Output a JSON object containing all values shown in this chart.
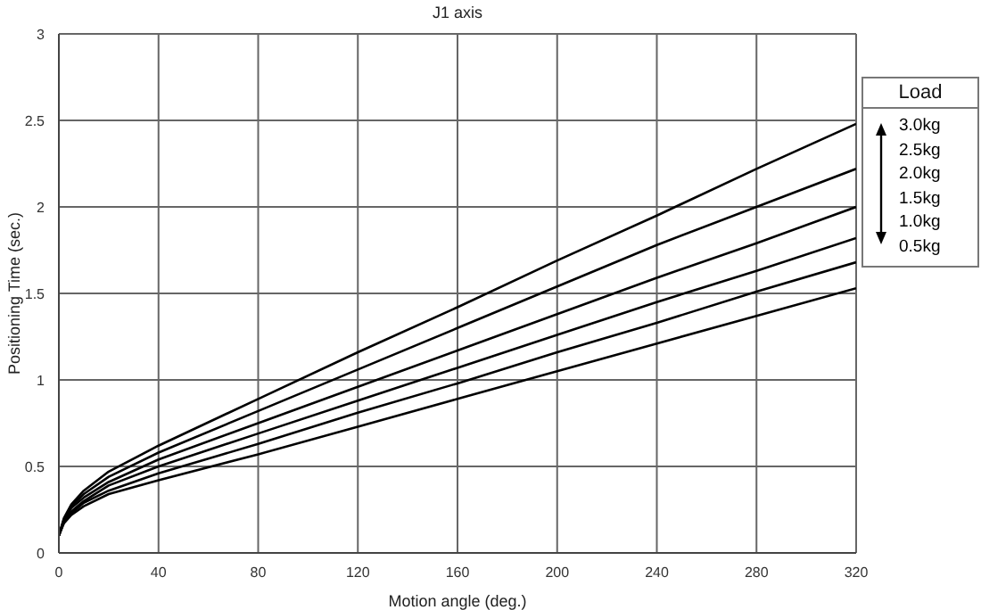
{
  "chart_data": {
    "type": "line",
    "title": "J1 axis",
    "xlabel": "Motion angle (deg.)",
    "ylabel": "Positioning Time (sec.)",
    "legend_title": "Load",
    "legend": "right",
    "grid": true,
    "marker": "none",
    "line_style": "solid",
    "x": [
      0,
      2,
      5,
      10,
      20,
      40,
      80,
      120,
      160,
      200,
      240,
      280,
      320
    ],
    "xlim": [
      0,
      320
    ],
    "xticks": [
      0,
      40,
      80,
      120,
      160,
      200,
      240,
      280,
      320
    ],
    "ylim": [
      0,
      3
    ],
    "yticks": [
      0,
      0.5,
      1,
      1.5,
      2,
      2.5,
      3
    ],
    "series": [
      {
        "name": "3.0kg",
        "color": "#000000",
        "values": [
          0.1,
          0.2,
          0.28,
          0.36,
          0.47,
          0.62,
          0.89,
          1.16,
          1.42,
          1.69,
          1.95,
          2.22,
          2.48
        ]
      },
      {
        "name": "2.5kg",
        "color": "#000000",
        "values": [
          0.1,
          0.19,
          0.27,
          0.34,
          0.44,
          0.58,
          0.82,
          1.06,
          1.3,
          1.54,
          1.78,
          2.0,
          2.22
        ]
      },
      {
        "name": "2.0kg",
        "color": "#000000",
        "values": [
          0.1,
          0.19,
          0.26,
          0.32,
          0.41,
          0.54,
          0.75,
          0.96,
          1.17,
          1.38,
          1.59,
          1.79,
          2.0
        ]
      },
      {
        "name": "1.5kg",
        "color": "#000000",
        "values": [
          0.1,
          0.18,
          0.24,
          0.3,
          0.39,
          0.5,
          0.69,
          0.88,
          1.07,
          1.26,
          1.45,
          1.63,
          1.82
        ]
      },
      {
        "name": "1.0kg",
        "color": "#000000",
        "values": [
          0.1,
          0.18,
          0.23,
          0.29,
          0.36,
          0.46,
          0.63,
          0.81,
          0.98,
          1.16,
          1.33,
          1.51,
          1.68
        ]
      },
      {
        "name": "0.5kg",
        "color": "#000000",
        "values": [
          0.1,
          0.17,
          0.22,
          0.27,
          0.34,
          0.42,
          0.57,
          0.73,
          0.89,
          1.05,
          1.21,
          1.37,
          1.53
        ]
      }
    ]
  }
}
